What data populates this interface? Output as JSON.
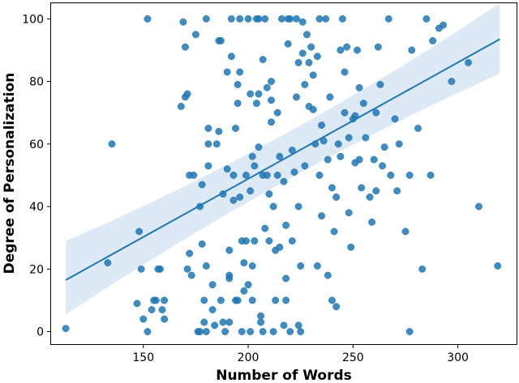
{
  "chart_data": {
    "type": "scatter",
    "title": "",
    "xlabel": "Number of Words",
    "ylabel": "Degree of Personalization",
    "xlim": [
      106,
      328
    ],
    "ylim": [
      -4,
      105
    ],
    "xticks": [
      150,
      200,
      250,
      300
    ],
    "yticks": [
      0,
      20,
      40,
      60,
      80,
      100
    ],
    "grid": false,
    "colors": {
      "points": "#1f77b4",
      "line": "#1f77b4",
      "band": "#c6dbef"
    },
    "regression": {
      "x": [
        113,
        320
      ],
      "y": [
        16.5,
        93.5
      ],
      "ci_lower": [
        5.5,
        82.5
      ],
      "ci_upper": [
        29,
        105
      ]
    },
    "points": [
      [
        113,
        1
      ],
      [
        133,
        22
      ],
      [
        135,
        60
      ],
      [
        147,
        9
      ],
      [
        148,
        32
      ],
      [
        149,
        20
      ],
      [
        150,
        4
      ],
      [
        152,
        100
      ],
      [
        152,
        0
      ],
      [
        154,
        7
      ],
      [
        155,
        10
      ],
      [
        156,
        10
      ],
      [
        157,
        20
      ],
      [
        158,
        20
      ],
      [
        159,
        7
      ],
      [
        160,
        4
      ],
      [
        160,
        10
      ],
      [
        168,
        72
      ],
      [
        169,
        99
      ],
      [
        170,
        91
      ],
      [
        170,
        75
      ],
      [
        171,
        76
      ],
      [
        171,
        20
      ],
      [
        172,
        25
      ],
      [
        172,
        50
      ],
      [
        173,
        18
      ],
      [
        174,
        50
      ],
      [
        175,
        95
      ],
      [
        176,
        0
      ],
      [
        177,
        0
      ],
      [
        177,
        40
      ],
      [
        178,
        47
      ],
      [
        178,
        28
      ],
      [
        179,
        10
      ],
      [
        179,
        3
      ],
      [
        180,
        0
      ],
      [
        180,
        100
      ],
      [
        180,
        21
      ],
      [
        181,
        60
      ],
      [
        181,
        53
      ],
      [
        181,
        65
      ],
      [
        183,
        15
      ],
      [
        183,
        7
      ],
      [
        184,
        2
      ],
      [
        185,
        60
      ],
      [
        186,
        64
      ],
      [
        186,
        93
      ],
      [
        187,
        93
      ],
      [
        187,
        10
      ],
      [
        188,
        44
      ],
      [
        188,
        3
      ],
      [
        189,
        0
      ],
      [
        190,
        52
      ],
      [
        190,
        83
      ],
      [
        191,
        17
      ],
      [
        191,
        26
      ],
      [
        191,
        18
      ],
      [
        191,
        3
      ],
      [
        192,
        88
      ],
      [
        192,
        100
      ],
      [
        193,
        50
      ],
      [
        193,
        42
      ],
      [
        194,
        65
      ],
      [
        194,
        10
      ],
      [
        195,
        10
      ],
      [
        195,
        79
      ],
      [
        195,
        73
      ],
      [
        196,
        43
      ],
      [
        196,
        100
      ],
      [
        196,
        83
      ],
      [
        197,
        29
      ],
      [
        197,
        0
      ],
      [
        198,
        13
      ],
      [
        198,
        22
      ],
      [
        199,
        50
      ],
      [
        199,
        29
      ],
      [
        200,
        100
      ],
      [
        200,
        15
      ],
      [
        201,
        45
      ],
      [
        201,
        76
      ],
      [
        201,
        0
      ],
      [
        202,
        56
      ],
      [
        202,
        21
      ],
      [
        202,
        10
      ],
      [
        203,
        53
      ],
      [
        203,
        29
      ],
      [
        204,
        100
      ],
      [
        204,
        73
      ],
      [
        205,
        100
      ],
      [
        205,
        76
      ],
      [
        205,
        59
      ],
      [
        206,
        5
      ],
      [
        206,
        3
      ],
      [
        207,
        50
      ],
      [
        207,
        87
      ],
      [
        207,
        0
      ],
      [
        208,
        100
      ],
      [
        208,
        33
      ],
      [
        209,
        50
      ],
      [
        209,
        78
      ],
      [
        210,
        44
      ],
      [
        210,
        29
      ],
      [
        211,
        74
      ],
      [
        211,
        80
      ],
      [
        211,
        67
      ],
      [
        212,
        40
      ],
      [
        212,
        0
      ],
      [
        213,
        10
      ],
      [
        213,
        26
      ],
      [
        214,
        50
      ],
      [
        214,
        70
      ],
      [
        215,
        56
      ],
      [
        215,
        27
      ],
      [
        216,
        100
      ],
      [
        217,
        48
      ],
      [
        217,
        2
      ],
      [
        218,
        34
      ],
      [
        218,
        17
      ],
      [
        218,
        10
      ],
      [
        219,
        92
      ],
      [
        219,
        100
      ],
      [
        220,
        100
      ],
      [
        220,
        0
      ],
      [
        221,
        58
      ],
      [
        221,
        29
      ],
      [
        222,
        51
      ],
      [
        223,
        100
      ],
      [
        223,
        75
      ],
      [
        224,
        2
      ],
      [
        224,
        40
      ],
      [
        224,
        86
      ],
      [
        225,
        21
      ],
      [
        225,
        0
      ],
      [
        226,
        99
      ],
      [
        226,
        89
      ],
      [
        227,
        79
      ],
      [
        227,
        53
      ],
      [
        228,
        95
      ],
      [
        229,
        72
      ],
      [
        229,
        86
      ],
      [
        230,
        91
      ],
      [
        231,
        82
      ],
      [
        231,
        71
      ],
      [
        232,
        60
      ],
      [
        233,
        88
      ],
      [
        233,
        21
      ],
      [
        234,
        100
      ],
      [
        234,
        50
      ],
      [
        235,
        66
      ],
      [
        235,
        37
      ],
      [
        236,
        61
      ],
      [
        237,
        100
      ],
      [
        238,
        55
      ],
      [
        238,
        18
      ],
      [
        239,
        75
      ],
      [
        240,
        10
      ],
      [
        240,
        46
      ],
      [
        241,
        32
      ],
      [
        242,
        43
      ],
      [
        242,
        8
      ],
      [
        243,
        60
      ],
      [
        244,
        90
      ],
      [
        244,
        56
      ],
      [
        245,
        100
      ],
      [
        246,
        70
      ],
      [
        246,
        83
      ],
      [
        247,
        91
      ],
      [
        248,
        62
      ],
      [
        248,
        38
      ],
      [
        249,
        27
      ],
      [
        250,
        68
      ],
      [
        251,
        69
      ],
      [
        251,
        54
      ],
      [
        252,
        90
      ],
      [
        253,
        55
      ],
      [
        253,
        78
      ],
      [
        254,
        46
      ],
      [
        255,
        73
      ],
      [
        256,
        62
      ],
      [
        258,
        43
      ],
      [
        259,
        35
      ],
      [
        260,
        55
      ],
      [
        261,
        45
      ],
      [
        261,
        70
      ],
      [
        262,
        91
      ],
      [
        263,
        79
      ],
      [
        264,
        53
      ],
      [
        265,
        59
      ],
      [
        267,
        100
      ],
      [
        268,
        50
      ],
      [
        270,
        68
      ],
      [
        271,
        45
      ],
      [
        272,
        60
      ],
      [
        275,
        32
      ],
      [
        277,
        50
      ],
      [
        278,
        90
      ],
      [
        281,
        65
      ],
      [
        283,
        20
      ],
      [
        285,
        100
      ],
      [
        287,
        50
      ],
      [
        288,
        93
      ],
      [
        291,
        97
      ],
      [
        293,
        98
      ],
      [
        297,
        80
      ],
      [
        305,
        86
      ],
      [
        310,
        40
      ],
      [
        319,
        21
      ],
      [
        277,
        0
      ]
    ]
  }
}
